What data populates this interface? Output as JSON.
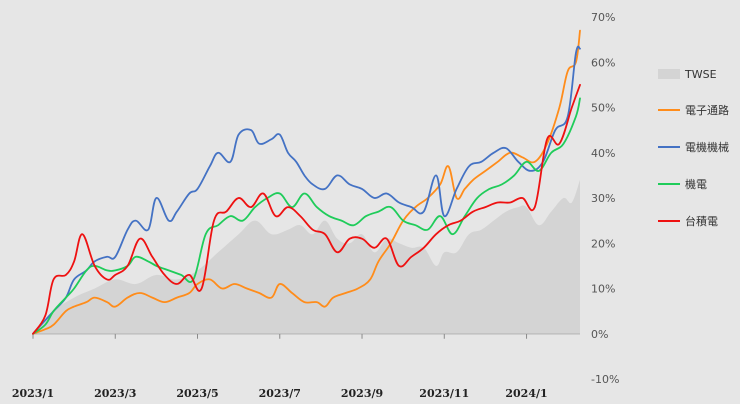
{
  "chart_data": {
    "type": "line",
    "title": "",
    "xlabel": "",
    "ylabel": "",
    "ylim": [
      -10,
      70
    ],
    "ytick_labels": [
      {
        "value": 70,
        "label": "70%"
      },
      {
        "value": 60,
        "label": "60%"
      },
      {
        "value": 50,
        "label": "50%"
      },
      {
        "value": 40,
        "label": "40%"
      },
      {
        "value": 30,
        "label": "30%"
      },
      {
        "value": 20,
        "label": "20%"
      },
      {
        "value": 10,
        "label": "10%"
      },
      {
        "value": 0,
        "label": "0%"
      },
      {
        "value": -10,
        "label": "-10%"
      }
    ],
    "x_range": [
      0,
      13.3
    ],
    "x_ticks": [
      {
        "pos": 0,
        "label": "2023/1"
      },
      {
        "pos": 2,
        "label": "2023/3"
      },
      {
        "pos": 4,
        "label": "2023/5"
      },
      {
        "pos": 6,
        "label": "2023/7"
      },
      {
        "pos": 8,
        "label": "2023/9"
      },
      {
        "pos": 10,
        "label": "2023/11"
      },
      {
        "pos": 12,
        "label": "2024/1"
      }
    ],
    "legend_position": "right",
    "series": [
      {
        "name": "TWSE",
        "kind": "area",
        "color": "#d4d4d4",
        "x": [
          0,
          0.5,
          1,
          1.5,
          2,
          2.5,
          3,
          3.5,
          4,
          4.5,
          5,
          5.4,
          5.8,
          6.2,
          6.5,
          6.8,
          7.1,
          7.4,
          7.7,
          8,
          8.3,
          8.6,
          8.9,
          9.2,
          9.5,
          9.8,
          10,
          10.3,
          10.6,
          10.9,
          11.2,
          11.5,
          11.8,
          12,
          12.3,
          12.6,
          12.9,
          13.1,
          13.3
        ],
        "values": [
          0,
          5,
          8,
          10,
          12,
          11,
          13,
          12,
          14,
          18,
          22,
          25,
          22,
          23,
          24,
          22,
          25,
          21,
          20,
          22,
          18,
          21,
          20,
          19,
          19,
          15,
          18,
          18,
          22,
          23,
          25,
          27,
          28,
          28,
          24,
          27,
          30,
          29,
          34
        ]
      },
      {
        "name": "電子通路",
        "kind": "line",
        "color": "#ff8c1a",
        "x": [
          0,
          0.3,
          0.5,
          0.8,
          1,
          1.3,
          1.5,
          1.8,
          2,
          2.3,
          2.6,
          2.9,
          3.2,
          3.5,
          3.8,
          4,
          4.3,
          4.6,
          4.9,
          5.2,
          5.5,
          5.8,
          6,
          6.3,
          6.6,
          6.9,
          7.1,
          7.3,
          7.6,
          7.9,
          8.2,
          8.4,
          8.7,
          9,
          9.3,
          9.6,
          9.9,
          10.1,
          10.3,
          10.5,
          10.7,
          11,
          11.3,
          11.6,
          11.9,
          12.2,
          12.5,
          12.8,
          13,
          13.2,
          13.3
        ],
        "values": [
          0,
          1,
          2,
          5,
          6,
          7,
          8,
          7,
          6,
          8,
          9,
          8,
          7,
          8,
          9,
          11,
          12,
          10,
          11,
          10,
          9,
          8,
          11,
          9,
          7,
          7,
          6,
          8,
          9,
          10,
          12,
          16,
          20,
          25,
          28,
          30,
          33,
          37,
          30,
          32,
          34,
          36,
          38,
          40,
          39,
          38,
          42,
          50,
          58,
          60,
          67
        ]
      },
      {
        "name": "電機機械",
        "kind": "line",
        "color": "#4472c4",
        "x": [
          0,
          0.3,
          0.5,
          0.8,
          1,
          1.3,
          1.5,
          1.8,
          2,
          2.3,
          2.5,
          2.8,
          3,
          3.3,
          3.5,
          3.8,
          4,
          4.3,
          4.5,
          4.8,
          5,
          5.3,
          5.5,
          5.8,
          6,
          6.2,
          6.4,
          6.6,
          6.8,
          7.1,
          7.4,
          7.7,
          8,
          8.3,
          8.6,
          8.9,
          9.2,
          9.5,
          9.8,
          10,
          10.3,
          10.6,
          10.9,
          11.2,
          11.5,
          11.8,
          12.1,
          12.4,
          12.7,
          13,
          13.2,
          13.3
        ],
        "values": [
          0,
          3,
          5,
          8,
          12,
          14,
          16,
          17,
          17,
          23,
          25,
          23,
          30,
          25,
          27,
          31,
          32,
          37,
          40,
          38,
          44,
          45,
          42,
          43,
          44,
          40,
          38,
          35,
          33,
          32,
          35,
          33,
          32,
          30,
          31,
          29,
          28,
          27,
          35,
          26,
          32,
          37,
          38,
          40,
          41,
          38,
          36,
          38,
          45,
          48,
          62,
          63
        ]
      },
      {
        "name": "機電",
        "kind": "line",
        "color": "#1fcc5a",
        "x": [
          0,
          0.3,
          0.5,
          0.8,
          1,
          1.3,
          1.5,
          1.8,
          2,
          2.3,
          2.5,
          2.8,
          3,
          3.3,
          3.6,
          3.9,
          4.2,
          4.5,
          4.8,
          5.1,
          5.4,
          5.7,
          6,
          6.3,
          6.6,
          6.9,
          7.2,
          7.5,
          7.8,
          8.1,
          8.4,
          8.7,
          9,
          9.3,
          9.6,
          9.9,
          10.2,
          10.5,
          10.8,
          11.1,
          11.4,
          11.7,
          12,
          12.3,
          12.6,
          12.9,
          13.2,
          13.3
        ],
        "values": [
          0,
          2,
          5,
          8,
          10,
          14,
          15,
          14,
          14,
          15,
          17,
          16,
          15,
          14,
          13,
          12,
          22,
          24,
          26,
          25,
          28,
          30,
          31,
          28,
          31,
          28,
          26,
          25,
          24,
          26,
          27,
          28,
          25,
          24,
          23,
          26,
          22,
          26,
          30,
          32,
          33,
          35,
          38,
          36,
          40,
          42,
          48,
          52
        ]
      },
      {
        "name": "台積電",
        "kind": "line",
        "color": "#ee1111",
        "x": [
          0,
          0.3,
          0.5,
          0.8,
          1,
          1.2,
          1.5,
          1.8,
          2,
          2.3,
          2.6,
          2.9,
          3.2,
          3.5,
          3.8,
          4.1,
          4.4,
          4.7,
          5,
          5.3,
          5.6,
          5.9,
          6.2,
          6.5,
          6.8,
          7.1,
          7.4,
          7.7,
          8,
          8.3,
          8.6,
          8.9,
          9.2,
          9.5,
          9.8,
          10.1,
          10.4,
          10.7,
          11,
          11.3,
          11.6,
          11.9,
          12.2,
          12.5,
          12.8,
          13.1,
          13.3
        ],
        "values": [
          0,
          4,
          12,
          13,
          16,
          22,
          15,
          12,
          13,
          15,
          21,
          17,
          13,
          11,
          13,
          10,
          25,
          27,
          30,
          28,
          31,
          26,
          28,
          26,
          23,
          22,
          18,
          21,
          21,
          19,
          21,
          15,
          17,
          19,
          22,
          24,
          25,
          27,
          28,
          29,
          29,
          30,
          28,
          43,
          42,
          50,
          55
        ]
      }
    ]
  }
}
